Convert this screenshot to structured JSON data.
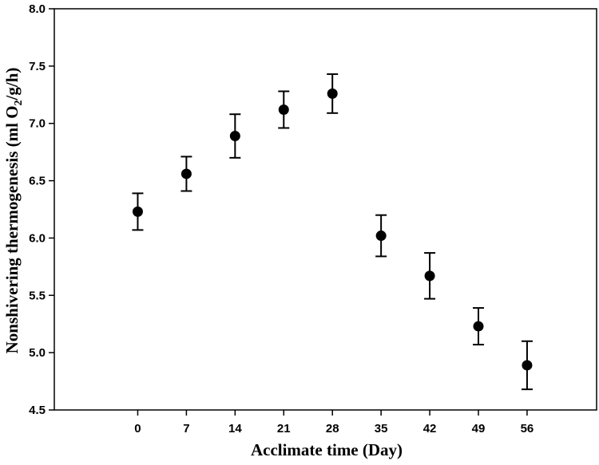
{
  "chart_data": {
    "type": "scatter",
    "xlabel": "Acclimate time (Day)",
    "ylabel_main": "Nonshivering thermogenesis (ml O",
    "ylabel_sub": "2",
    "ylabel_tail": "/g/h)",
    "x_ticks": [
      "0",
      "7",
      "14",
      "21",
      "28",
      "35",
      "42",
      "49",
      "56"
    ],
    "y_ticks": [
      "4.5",
      "5.0",
      "5.5",
      "6.0",
      "6.5",
      "7.0",
      "7.5",
      "8.0"
    ],
    "xlim": [
      -12,
      66
    ],
    "ylim": [
      4.5,
      8.0
    ],
    "grid": false,
    "legend": "none",
    "marker_color": "#000000",
    "series": [
      {
        "x": [
          0,
          7,
          14,
          21,
          28,
          35,
          42,
          49,
          56
        ],
        "y": [
          6.23,
          6.56,
          6.89,
          7.12,
          7.26,
          6.02,
          5.67,
          5.23,
          4.89
        ],
        "err_lo": [
          6.07,
          6.41,
          6.7,
          6.96,
          7.09,
          5.84,
          5.47,
          5.07,
          4.68
        ],
        "err_hi": [
          6.39,
          6.71,
          7.08,
          7.28,
          7.43,
          6.2,
          5.87,
          5.39,
          5.1
        ]
      }
    ]
  }
}
